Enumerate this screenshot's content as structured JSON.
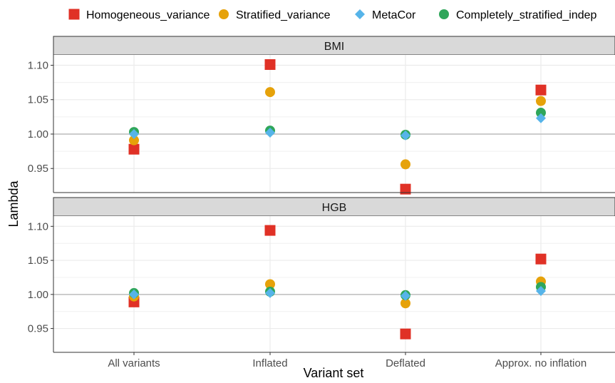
{
  "legend": [
    {
      "name": "Homogeneous_variance",
      "color": "#e03126",
      "shape": "square"
    },
    {
      "name": "Stratified_variance",
      "color": "#e6a20a",
      "shape": "circle"
    },
    {
      "name": "MetaCor",
      "color": "#56b4e9",
      "shape": "diamond"
    },
    {
      "name": "Completely_stratified_indep",
      "color": "#2fa65a",
      "shape": "circle"
    }
  ],
  "chart_data": {
    "type": "scatter",
    "xlabel": "Variant set",
    "ylabel": "Lambda",
    "categories": [
      "All variants",
      "Inflated",
      "Deflated",
      "Approx. no inflation"
    ],
    "reference_line": 1.0,
    "ylim": [
      0.915,
      1.115
    ],
    "yticks": [
      "0.95",
      "1.00",
      "1.05",
      "1.10"
    ],
    "grid": true,
    "legend_position": "top",
    "panels": [
      {
        "title": "BMI",
        "series": [
          {
            "name": "Homogeneous_variance",
            "values": [
              0.978,
              1.101,
              0.92,
              1.064
            ]
          },
          {
            "name": "Stratified_variance",
            "values": [
              0.991,
              1.061,
              0.956,
              1.048
            ]
          },
          {
            "name": "Completely_stratified_indep",
            "values": [
              1.003,
              1.005,
              0.999,
              1.031
            ]
          },
          {
            "name": "MetaCor",
            "values": [
              1.0,
              1.002,
              0.998,
              1.023
            ]
          }
        ]
      },
      {
        "title": "HGB",
        "series": [
          {
            "name": "Homogeneous_variance",
            "values": [
              0.989,
              1.094,
              0.942,
              1.052
            ]
          },
          {
            "name": "Stratified_variance",
            "values": [
              0.997,
              1.015,
              0.987,
              1.019
            ]
          },
          {
            "name": "Completely_stratified_indep",
            "values": [
              1.002,
              1.004,
              0.999,
              1.011
            ]
          },
          {
            "name": "MetaCor",
            "values": [
              1.0,
              1.002,
              0.998,
              1.005
            ]
          }
        ]
      }
    ]
  }
}
